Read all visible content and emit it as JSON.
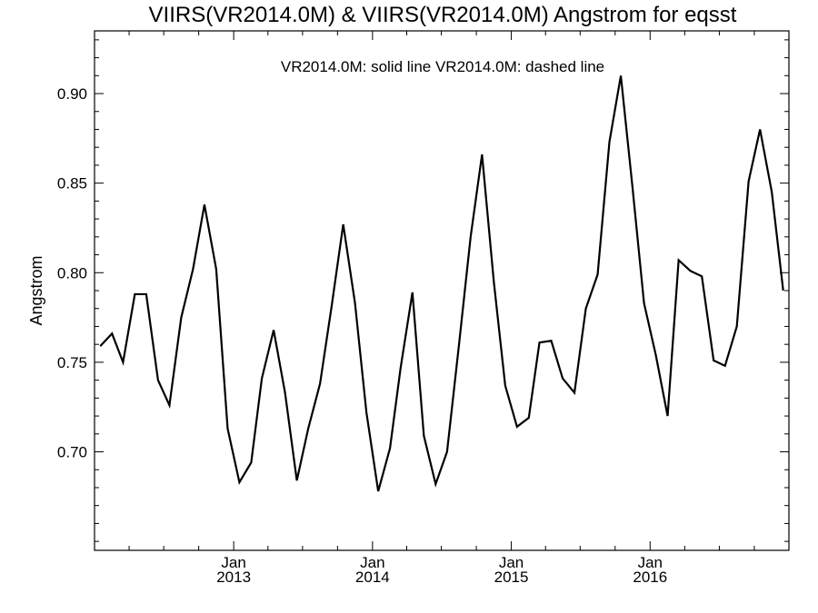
{
  "chart_data": {
    "type": "line",
    "title": "VIIRS(VR2014.0M) & VIIRS(VR2014.0M)  Angstrom for eqsst",
    "annotation": "VR2014.0M: solid line   VR2014.0M: dashed line",
    "xlabel": "",
    "ylabel": "Angstrom",
    "ylim": [
      0.645,
      0.935
    ],
    "xlim": [
      "2012-01-01",
      "2016-12-31"
    ],
    "yticks": [
      0.7,
      0.75,
      0.8,
      0.85,
      0.9
    ],
    "ytick_labels": [
      "0.70",
      "0.75",
      "0.80",
      "0.85",
      "0.90"
    ],
    "xticks": [
      {
        "date": "2013-01-01",
        "month": "Jan",
        "year": "2013"
      },
      {
        "date": "2014-01-01",
        "month": "Jan",
        "year": "2014"
      },
      {
        "date": "2015-01-01",
        "month": "Jan",
        "year": "2015"
      },
      {
        "date": "2016-01-01",
        "month": "Jan",
        "year": "2016"
      }
    ],
    "grid": false,
    "series": [
      {
        "style": "solid",
        "color": "#000000",
        "x": [
          "2012-01",
          "2012-02",
          "2012-03",
          "2012-04",
          "2012-05",
          "2012-06",
          "2012-07",
          "2012-08",
          "2012-09",
          "2012-10",
          "2012-11",
          "2012-12",
          "2013-01",
          "2013-02",
          "2013-03",
          "2013-04",
          "2013-05",
          "2013-06",
          "2013-07",
          "2013-08",
          "2013-09",
          "2013-10",
          "2013-11",
          "2013-12",
          "2014-01",
          "2014-02",
          "2014-03",
          "2014-04",
          "2014-05",
          "2014-06",
          "2014-07",
          "2014-08",
          "2014-09",
          "2014-10",
          "2014-11",
          "2014-12",
          "2015-01",
          "2015-02",
          "2015-03",
          "2015-04",
          "2015-05",
          "2015-06",
          "2015-07",
          "2015-08",
          "2015-09",
          "2015-10",
          "2015-11",
          "2015-12",
          "2016-01",
          "2016-02",
          "2016-03",
          "2016-04",
          "2016-05",
          "2016-06",
          "2016-07",
          "2016-08",
          "2016-09",
          "2016-10",
          "2016-11",
          "2016-12"
        ],
        "values": [
          0.759,
          0.766,
          0.75,
          0.788,
          0.788,
          0.74,
          0.726,
          0.775,
          0.802,
          0.838,
          0.802,
          0.713,
          0.683,
          0.694,
          0.741,
          0.768,
          0.733,
          0.684,
          0.713,
          0.738,
          0.782,
          0.827,
          0.783,
          0.722,
          0.678,
          0.702,
          0.747,
          0.789,
          0.709,
          0.682,
          0.7,
          0.759,
          0.82,
          0.866,
          0.795,
          0.737,
          0.714,
          0.719,
          0.761,
          0.762,
          0.741,
          0.733,
          0.78,
          0.799,
          0.873,
          0.91,
          0.847,
          0.783,
          0.754,
          0.72,
          0.807,
          0.801,
          0.798,
          0.751,
          0.748,
          0.77,
          0.851,
          0.88,
          0.845,
          0.79
        ]
      }
    ]
  }
}
